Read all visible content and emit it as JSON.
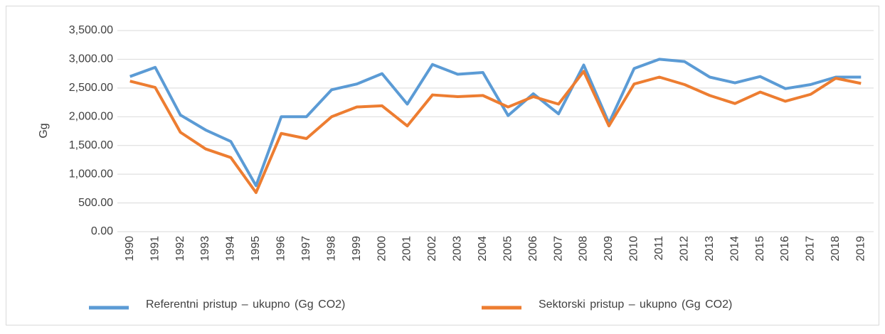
{
  "chart_data": {
    "type": "line",
    "y_label": "Gg",
    "categories": [
      "1990",
      "1991",
      "1992",
      "1993",
      "1994",
      "1995",
      "1996",
      "1997",
      "1998",
      "1999",
      "2000",
      "2001",
      "2002",
      "2003",
      "2004",
      "2005",
      "2006",
      "2007",
      "2008",
      "2009",
      "2010",
      "2011",
      "2012",
      "2013",
      "2014",
      "2015",
      "2016",
      "2017",
      "2018",
      "2019"
    ],
    "series": [
      {
        "name": "Referentni pristup – ukupno (Gg CO2)",
        "color": "#5b9bd5",
        "values": [
          2700,
          2860,
          2030,
          1770,
          1570,
          800,
          2000,
          2000,
          2470,
          2570,
          2750,
          2220,
          2910,
          2740,
          2770,
          2020,
          2400,
          2050,
          2900,
          1890,
          2840,
          3000,
          2960,
          2690,
          2590,
          2700,
          2490,
          2560,
          2690,
          2690
        ]
      },
      {
        "name": "Sektorski pristup – ukupno (Gg CO2)",
        "color": "#ed7d31",
        "values": [
          2620,
          2510,
          1730,
          1440,
          1290,
          680,
          1710,
          1620,
          2000,
          2170,
          2190,
          1840,
          2380,
          2350,
          2370,
          2170,
          2350,
          2220,
          2790,
          1840,
          2570,
          2690,
          2560,
          2370,
          2230,
          2430,
          2270,
          2390,
          2670,
          2580
        ]
      }
    ],
    "ylim": [
      0,
      3500
    ],
    "yticks": [
      {
        "value": 0,
        "label": "0.00"
      },
      {
        "value": 500,
        "label": "500.00"
      },
      {
        "value": 1000,
        "label": "1,000.00"
      },
      {
        "value": 1500,
        "label": "1,500.00"
      },
      {
        "value": 2000,
        "label": "2,000.00"
      },
      {
        "value": 2500,
        "label": "2,500.00"
      },
      {
        "value": 3000,
        "label": "3,000.00"
      },
      {
        "value": 3500,
        "label": "3,500.00"
      }
    ],
    "grid": true,
    "legend": "bottom"
  }
}
